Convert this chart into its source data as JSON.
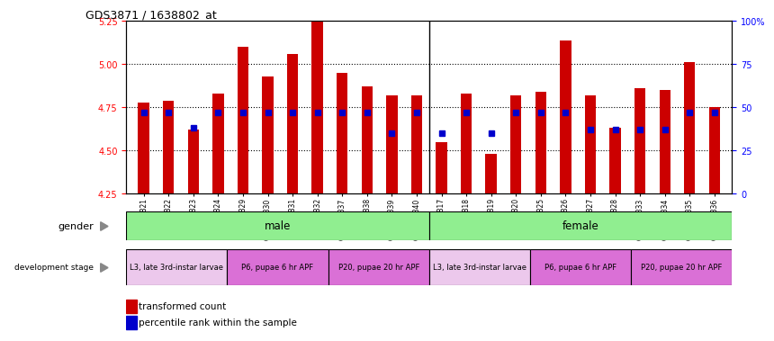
{
  "title": "GDS3871 / 1638802_at",
  "samples": [
    "GSM572821",
    "GSM572822",
    "GSM572823",
    "GSM572824",
    "GSM572829",
    "GSM572830",
    "GSM572831",
    "GSM572832",
    "GSM572837",
    "GSM572838",
    "GSM572839",
    "GSM572840",
    "GSM572817",
    "GSM572818",
    "GSM572819",
    "GSM572820",
    "GSM572825",
    "GSM572826",
    "GSM572827",
    "GSM572828",
    "GSM572833",
    "GSM572834",
    "GSM572835",
    "GSM572836"
  ],
  "bar_values": [
    4.78,
    4.79,
    4.62,
    4.83,
    5.1,
    4.93,
    5.06,
    5.25,
    4.95,
    4.87,
    4.82,
    4.82,
    4.55,
    4.83,
    4.48,
    4.82,
    4.84,
    5.14,
    4.82,
    4.63,
    4.86,
    4.85,
    5.01,
    4.75
  ],
  "percentile_values": [
    47,
    47,
    38,
    47,
    47,
    47,
    47,
    47,
    47,
    47,
    35,
    47,
    35,
    47,
    35,
    47,
    47,
    47,
    37,
    37,
    37,
    37,
    47,
    47
  ],
  "gender_groups": [
    {
      "label": "male",
      "start": 0,
      "end": 12
    },
    {
      "label": "female",
      "start": 12,
      "end": 24
    }
  ],
  "dev_stage_groups": [
    {
      "label": "L3, late 3rd-instar larvae",
      "start": 0,
      "end": 4,
      "color": "#ECC8EC"
    },
    {
      "label": "P6, pupae 6 hr APF",
      "start": 4,
      "end": 8,
      "color": "#DA70D6"
    },
    {
      "label": "P20, pupae 20 hr APF",
      "start": 8,
      "end": 12,
      "color": "#DA70D6"
    },
    {
      "label": "L3, late 3rd-instar larvae",
      "start": 12,
      "end": 16,
      "color": "#ECC8EC"
    },
    {
      "label": "P6, pupae 6 hr APF",
      "start": 16,
      "end": 20,
      "color": "#DA70D6"
    },
    {
      "label": "P20, pupae 20 hr APF",
      "start": 20,
      "end": 24,
      "color": "#DA70D6"
    }
  ],
  "ylim": [
    4.25,
    5.25
  ],
  "yticks_left": [
    4.25,
    4.5,
    4.75,
    5.0,
    5.25
  ],
  "yticks_right": [
    0,
    25,
    50,
    75,
    100
  ],
  "bar_color": "#CC0000",
  "dot_color": "#0000CC",
  "gender_color": "#90EE90",
  "background_color": "#ffffff",
  "grid_dotted_at": [
    4.5,
    4.75,
    5.0
  ]
}
